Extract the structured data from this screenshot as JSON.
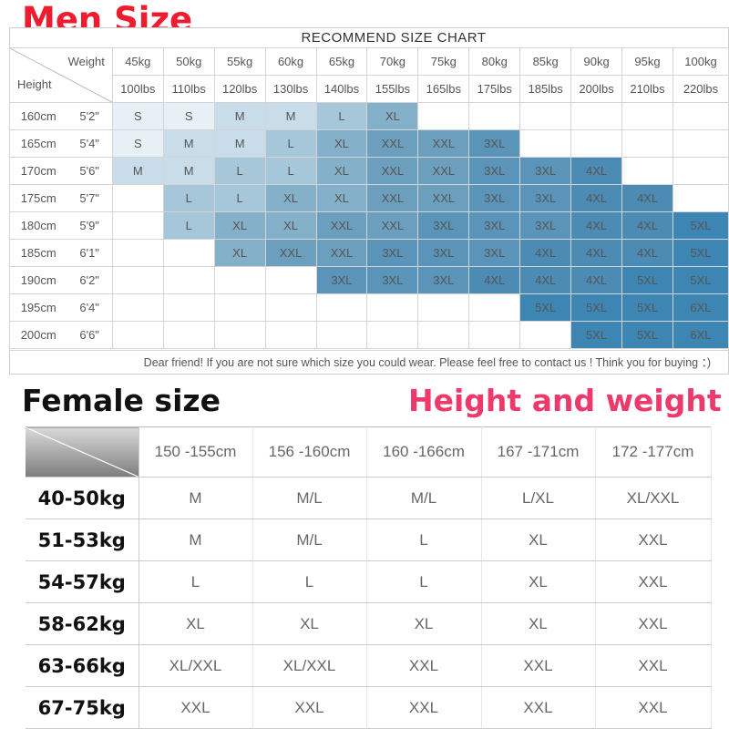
{
  "men": {
    "title": "Men Size",
    "chart_title": "RECOMMEND SIZE CHART",
    "weight_label": "Weight",
    "height_label": "Height",
    "weights_kg": [
      "45kg",
      "50kg",
      "55kg",
      "60kg",
      "65kg",
      "70kg",
      "75kg",
      "80kg",
      "85kg",
      "90kg",
      "95kg",
      "100kg"
    ],
    "weights_lbs": [
      "100lbs",
      "110lbs",
      "120lbs",
      "130lbs",
      "140lbs",
      "155lbs",
      "165lbs",
      "175lbs",
      "185lbs",
      "200lbs",
      "210lbs",
      "220lbs"
    ],
    "rows": [
      {
        "cm": "160cm",
        "ft": "5'2\"",
        "sizes": [
          "S",
          "S",
          "M",
          "M",
          "L",
          "XL",
          "",
          "",
          "",
          "",
          "",
          ""
        ]
      },
      {
        "cm": "165cm",
        "ft": "5'4\"",
        "sizes": [
          "S",
          "M",
          "M",
          "L",
          "XL",
          "XXL",
          "XXL",
          "3XL",
          "",
          "",
          "",
          ""
        ]
      },
      {
        "cm": "170cm",
        "ft": "5'6\"",
        "sizes": [
          "M",
          "M",
          "L",
          "L",
          "XL",
          "XXL",
          "XXL",
          "3XL",
          "3XL",
          "4XL",
          "",
          ""
        ]
      },
      {
        "cm": "175cm",
        "ft": "5'7\"",
        "sizes": [
          "",
          "L",
          "L",
          "XL",
          "XL",
          "XXL",
          "XXL",
          "3XL",
          "3XL",
          "4XL",
          "4XL",
          ""
        ]
      },
      {
        "cm": "180cm",
        "ft": "5'9\"",
        "sizes": [
          "",
          "L",
          "XL",
          "XL",
          "XXL",
          "XXL",
          "3XL",
          "3XL",
          "3XL",
          "4XL",
          "4XL",
          "5XL"
        ]
      },
      {
        "cm": "185cm",
        "ft": "6'1\"",
        "sizes": [
          "",
          "",
          "XL",
          "XXL",
          "XXL",
          "3XL",
          "3XL",
          "3XL",
          "4XL",
          "4XL",
          "4XL",
          "5XL"
        ]
      },
      {
        "cm": "190cm",
        "ft": "6'2\"",
        "sizes": [
          "",
          "",
          "",
          "",
          "3XL",
          "3XL",
          "3XL",
          "4XL",
          "4XL",
          "4XL",
          "5XL",
          "5XL"
        ]
      },
      {
        "cm": "195cm",
        "ft": "6'4\"",
        "sizes": [
          "",
          "",
          "",
          "",
          "",
          "",
          "",
          "",
          "5XL",
          "5XL",
          "5XL",
          "6XL"
        ]
      },
      {
        "cm": "200cm",
        "ft": "6'6\"",
        "sizes": [
          "",
          "",
          "",
          "",
          "",
          "",
          "",
          "",
          "",
          "5XL",
          "5XL",
          "6XL"
        ]
      }
    ],
    "size_colors": {
      "S": "#e7f0f5",
      "M": "#c8dde9",
      "L": "#a6c7da",
      "XL": "#85b0c9",
      "XXL": "#6c9fbe",
      "3XL": "#5a94b8",
      "4XL": "#4b8bb4",
      "5XL": "#3d85b3",
      "6XL": "#3d85b3"
    },
    "note": "Dear friend! If you are not sure which size you could wear. Please feel free to contact us ! Think you for buying ：)"
  },
  "female": {
    "title": "Female size",
    "subtitle": "Height and weight",
    "heights": [
      "150 -155cm",
      "156 -160cm",
      "160 -166cm",
      "167 -171cm",
      "172 -177cm"
    ],
    "rows": [
      {
        "weight": "40-50kg",
        "sizes": [
          "M",
          "M/L",
          "M/L",
          "L/XL",
          "XL/XXL"
        ]
      },
      {
        "weight": "51-53kg",
        "sizes": [
          "M",
          "M/L",
          "L",
          "XL",
          "XXL"
        ]
      },
      {
        "weight": "54-57kg",
        "sizes": [
          "L",
          "L",
          "L",
          "XL",
          "XXL"
        ]
      },
      {
        "weight": "58-62kg",
        "sizes": [
          "XL",
          "XL",
          "XL",
          "XL",
          "XXL"
        ]
      },
      {
        "weight": "63-66kg",
        "sizes": [
          "XL/XXL",
          "XL/XXL",
          "XXL",
          "XXL",
          "XXL"
        ]
      },
      {
        "weight": "67-75kg",
        "sizes": [
          "XXL",
          "XXL",
          "XXL",
          "XXL",
          "XXL"
        ]
      }
    ]
  }
}
